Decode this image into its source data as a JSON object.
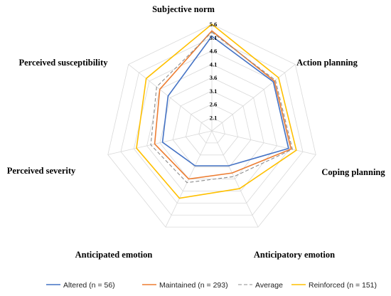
{
  "chart_data": {
    "type": "radar",
    "axes": [
      "Subjective norm",
      "Action planning",
      "Coping planning",
      "Anticipatory emotion",
      "Anticipated emotion",
      "Perceived severity",
      "Perceived susceptibility"
    ],
    "rlim": [
      1.6,
      5.6
    ],
    "ticks": [
      2.1,
      2.6,
      3.1,
      3.6,
      4.1,
      4.6,
      5.1,
      5.6
    ],
    "tick_labels": [
      "2.1",
      "2.6",
      "3.1",
      "3.6",
      "4.1",
      "4.6",
      "5.1",
      "5.6"
    ],
    "grid": true,
    "legend_position": "bottom",
    "series": [
      {
        "name": "Altered (n = 56)",
        "color": "#4472c4",
        "dashed": false,
        "values": [
          5.15,
          4.55,
          4.55,
          3.05,
          3.05,
          3.5,
          3.7
        ]
      },
      {
        "name": "Maintained (n = 293)",
        "color": "#ed7d31",
        "dashed": false,
        "values": [
          5.35,
          4.6,
          4.65,
          3.35,
          3.6,
          3.8,
          4.1
        ]
      },
      {
        "name": "Average",
        "color": "#8c8c8c",
        "dashed": true,
        "values": [
          5.3,
          4.65,
          4.7,
          3.5,
          3.75,
          3.95,
          4.25
        ]
      },
      {
        "name": "Reinforced (n = 151)",
        "color": "#ffc000",
        "dashed": false,
        "values": [
          5.6,
          4.8,
          4.85,
          4.0,
          4.4,
          4.5,
          4.75
        ]
      }
    ]
  }
}
